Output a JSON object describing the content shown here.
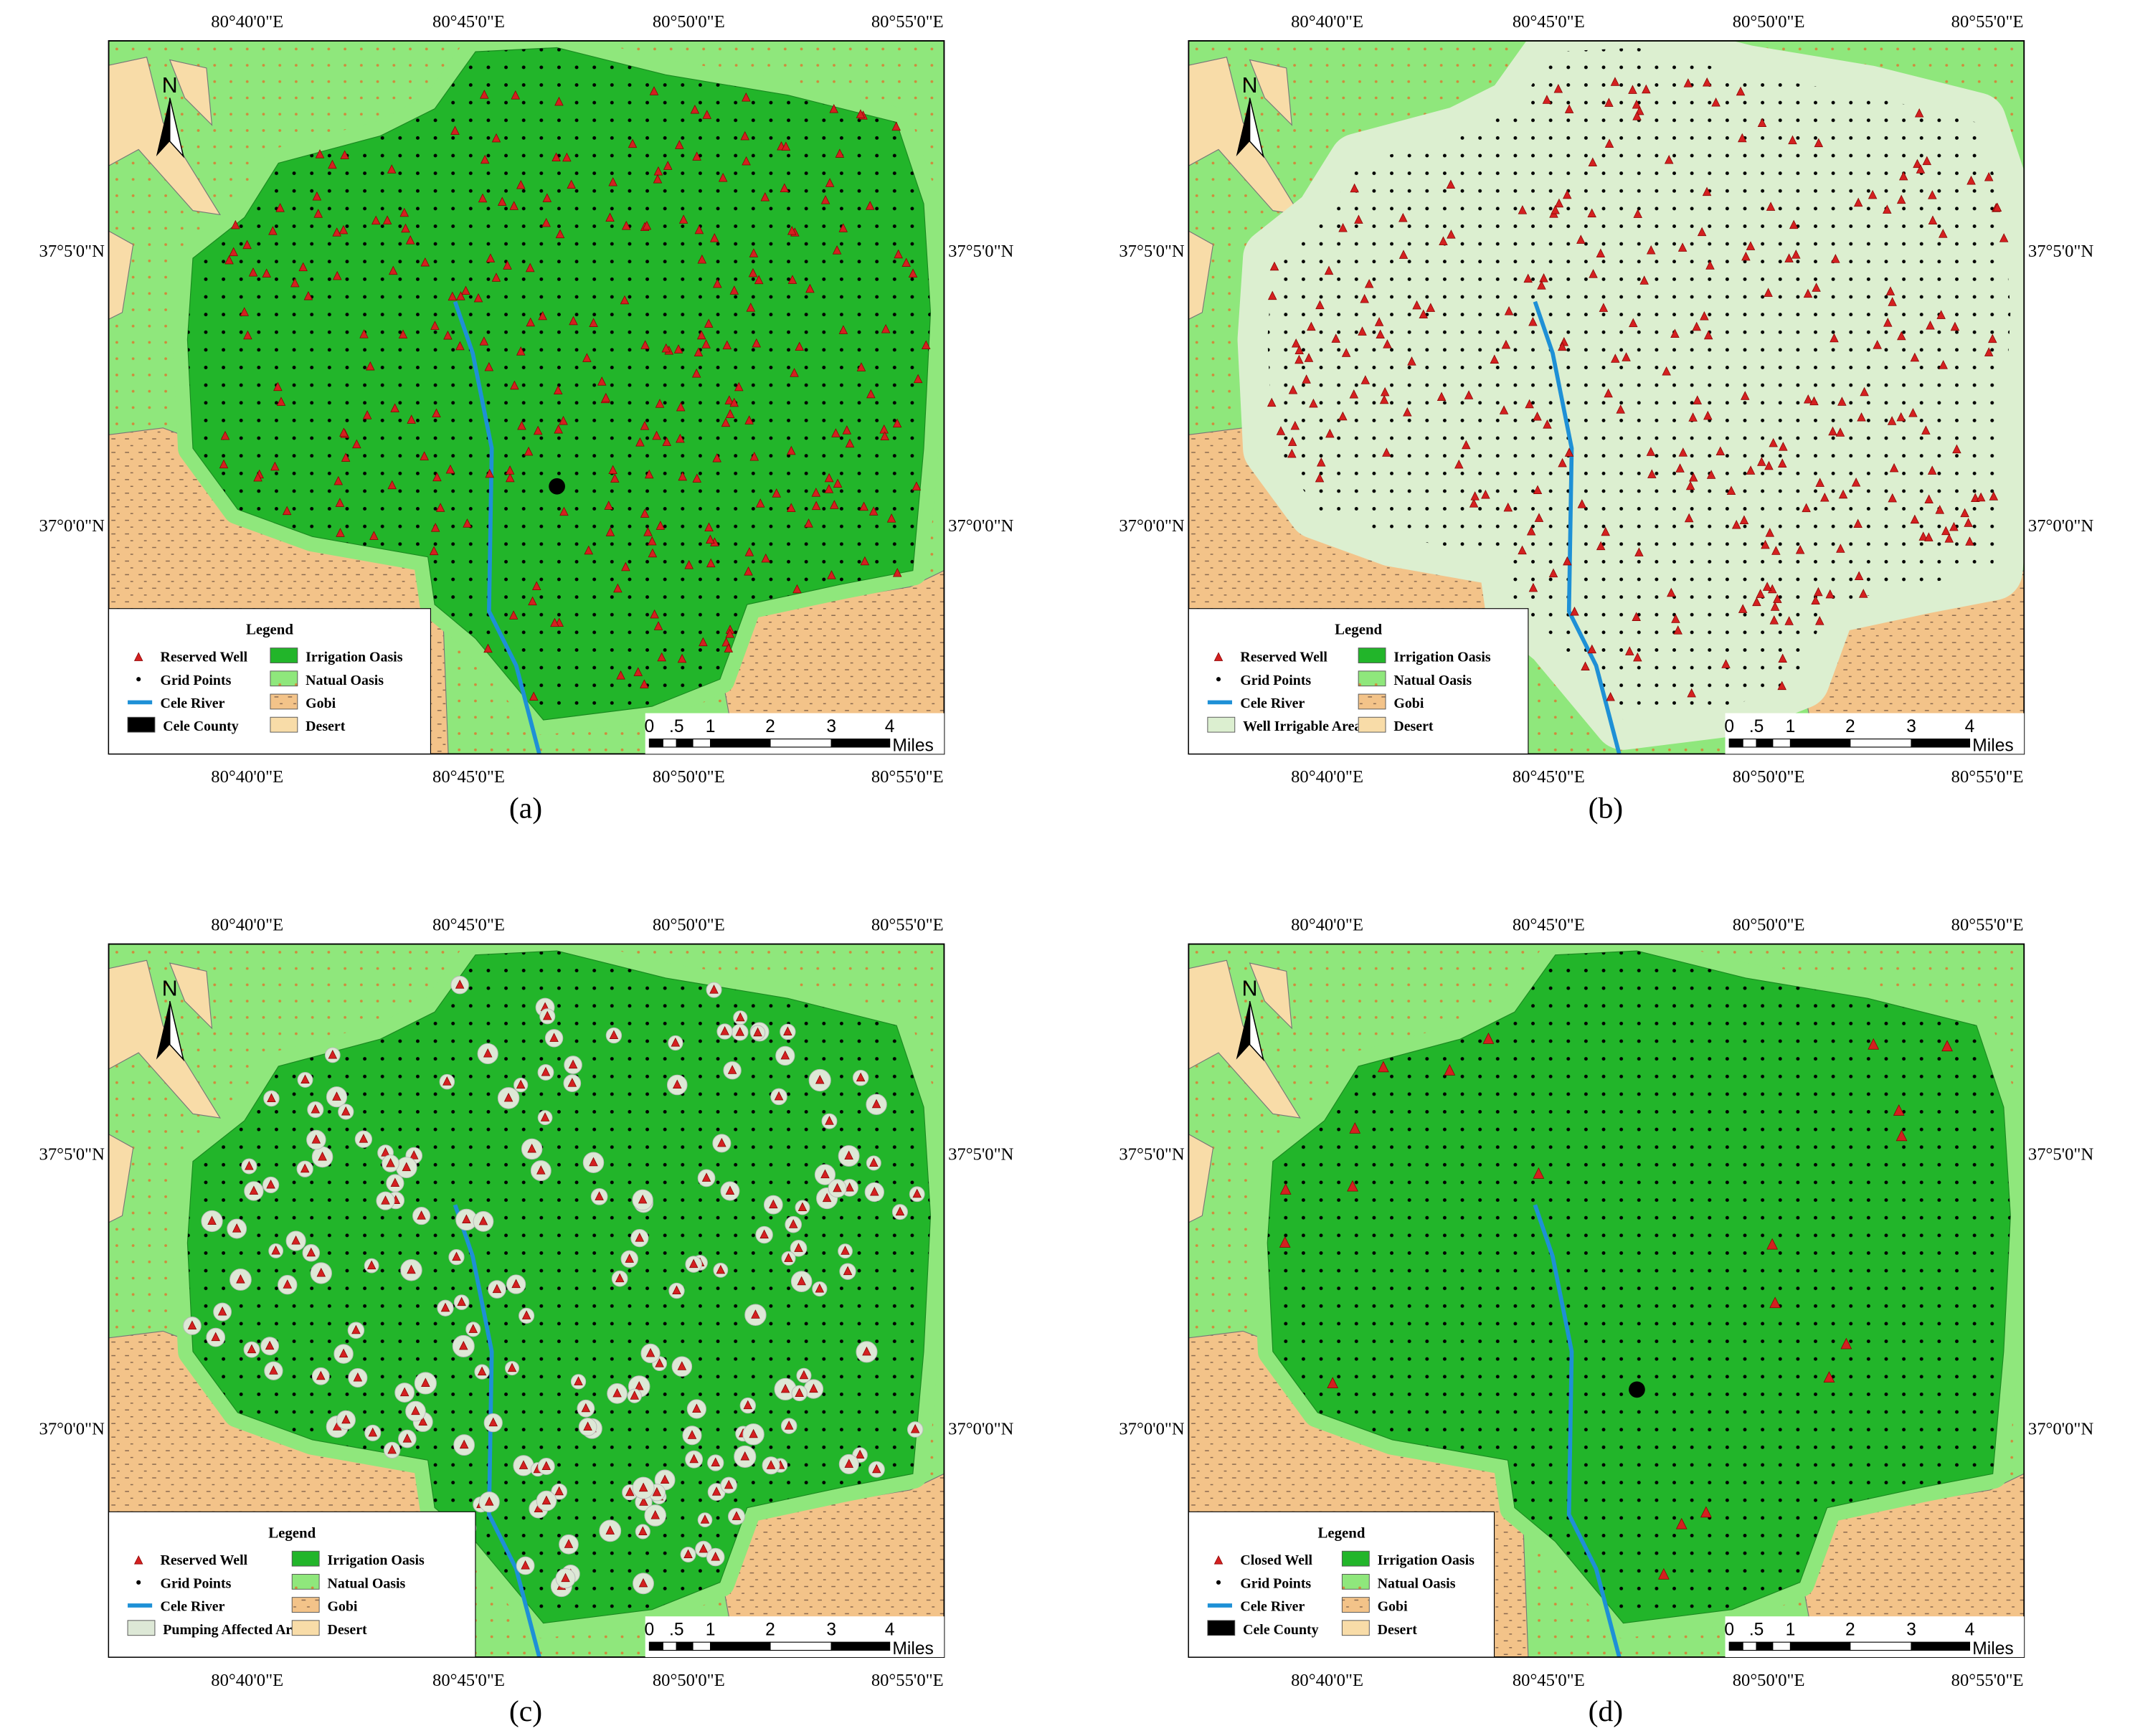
{
  "lon_labels": [
    "80°40'0\"E",
    "80°45'0\"E",
    "80°50'0\"E",
    "80°55'0\"E"
  ],
  "lat_labels": [
    "37°5'0\"N",
    "37°0'0\"N"
  ],
  "north": "N",
  "scale": {
    "labels": [
      "0",
      ".5",
      "1",
      "2",
      "3",
      "4"
    ],
    "unit": "Miles"
  },
  "panels": [
    {
      "label": "(a)",
      "legend": {
        "title": "Legend",
        "items": [
          "Reserved Well",
          "Grid Points",
          "Cele River",
          "Cele County",
          "Irrigation Oasis",
          "Natual Oasis",
          "Gobi",
          "Desert"
        ]
      }
    },
    {
      "label": "(b)",
      "legend": {
        "title": "Legend",
        "items": [
          "Reserved Well",
          "Grid Points",
          "Cele River",
          "Well Irrigable Area",
          "Irrigation Oasis",
          "Natual Oasis",
          "Gobi",
          "Desert"
        ]
      }
    },
    {
      "label": "(c)",
      "legend": {
        "title": "Legend",
        "items": [
          "Reserved Well",
          "Grid Points",
          "Cele River",
          "Pumping Affected Area",
          "Irrigation Oasis",
          "Natual Oasis",
          "Gobi",
          "Desert"
        ]
      }
    },
    {
      "label": "(d)",
      "legend": {
        "title": "Legend",
        "items": [
          "Closed Well",
          "Grid Points",
          "Cele River",
          "Cele County",
          "Irrigation Oasis",
          "Natual Oasis",
          "Gobi",
          "Desert"
        ]
      }
    }
  ]
}
